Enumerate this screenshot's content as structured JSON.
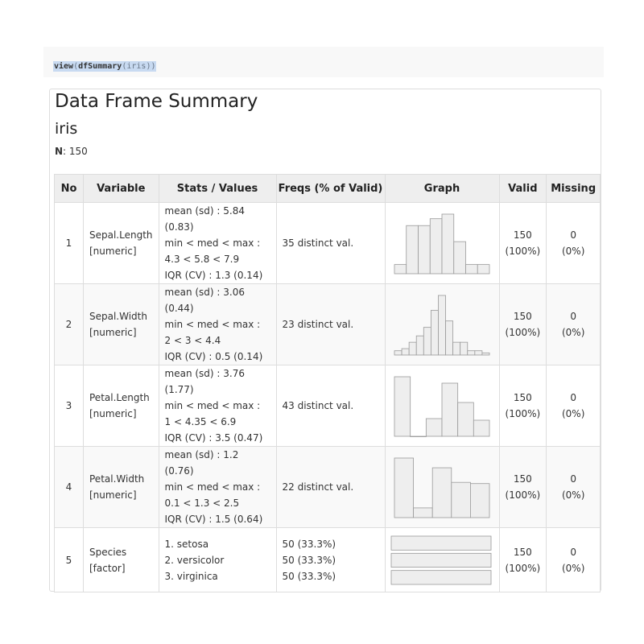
{
  "code": {
    "fn": "view",
    "open": "(",
    "inner_fn": "dfSummary",
    "inner_open": "(",
    "arg": "iris",
    "close": "))"
  },
  "summary": {
    "title": "Data Frame Summary",
    "dataset": "iris",
    "n_label": "N",
    "n_value": ": 150",
    "headers": [
      "No",
      "Variable",
      "Stats / Values",
      "Freqs (% of Valid)",
      "Graph",
      "Valid",
      "Missing"
    ],
    "rows": [
      {
        "no": "1",
        "var_name": "Sepal.Length",
        "var_type": "[numeric]",
        "stats": [
          "mean (sd) : 5.84 (0.83)",
          "min < med < max :",
          "4.3 < 5.8 < 7.9",
          "IQR (CV) : 1.3 (0.14)"
        ],
        "freqs": [
          "35 distinct val."
        ],
        "valid": "150",
        "valid_pct": "(100%)",
        "missing": "0",
        "missing_pct": "(0%)"
      },
      {
        "no": "2",
        "var_name": "Sepal.Width",
        "var_type": "[numeric]",
        "stats": [
          "mean (sd) : 3.06 (0.44)",
          "min < med < max :",
          "2 < 3 < 4.4",
          "IQR (CV) : 0.5 (0.14)"
        ],
        "freqs": [
          "23 distinct val."
        ],
        "valid": "150",
        "valid_pct": "(100%)",
        "missing": "0",
        "missing_pct": "(0%)"
      },
      {
        "no": "3",
        "var_name": "Petal.Length",
        "var_type": "[numeric]",
        "stats": [
          "mean (sd) : 3.76 (1.77)",
          "min < med < max :",
          "1 < 4.35 < 6.9",
          "IQR (CV) : 3.5 (0.47)"
        ],
        "freqs": [
          "43 distinct val."
        ],
        "valid": "150",
        "valid_pct": "(100%)",
        "missing": "0",
        "missing_pct": "(0%)"
      },
      {
        "no": "4",
        "var_name": "Petal.Width",
        "var_type": "[numeric]",
        "stats": [
          "mean (sd) : 1.2 (0.76)",
          "min < med < max :",
          "0.1 < 1.3 < 2.5",
          "IQR (CV) : 1.5 (0.64)"
        ],
        "freqs": [
          "22 distinct val."
        ],
        "valid": "150",
        "valid_pct": "(100%)",
        "missing": "0",
        "missing_pct": "(0%)"
      },
      {
        "no": "5",
        "var_name": "Species",
        "var_type": "[factor]",
        "stats": [
          "1. setosa",
          "2. versicolor",
          "3. virginica"
        ],
        "freqs": [
          "50 (33.3%)",
          "50 (33.3%)",
          "50 (33.3%)"
        ],
        "valid": "150",
        "valid_pct": "(100%)",
        "missing": "0",
        "missing_pct": "(0%)"
      }
    ]
  },
  "colors": {
    "bar_fill": "#eeeeee",
    "bar_stroke": "#999999",
    "code_highlight": "#c8daf1"
  },
  "chart_data": [
    {
      "type": "bar",
      "variable": "Sepal.Length",
      "title": "",
      "values": [
        4,
        21,
        21,
        24,
        26,
        14,
        4,
        4
      ]
    },
    {
      "type": "bar",
      "variable": "Sepal.Width",
      "title": "",
      "values": [
        2,
        3,
        6,
        9,
        13,
        21,
        28,
        16,
        6,
        6,
        2,
        2,
        1
      ]
    },
    {
      "type": "bar",
      "variable": "Petal.Length",
      "title": "",
      "values": [
        37,
        0,
        11,
        33,
        21,
        10
      ]
    },
    {
      "type": "bar",
      "variable": "Petal.Width",
      "title": "",
      "values": [
        49,
        8,
        41,
        29,
        28
      ]
    },
    {
      "type": "bar",
      "variable": "Species",
      "title": "",
      "orientation": "horizontal",
      "categories": [
        "setosa",
        "versicolor",
        "virginica"
      ],
      "values": [
        50,
        50,
        50
      ]
    }
  ]
}
